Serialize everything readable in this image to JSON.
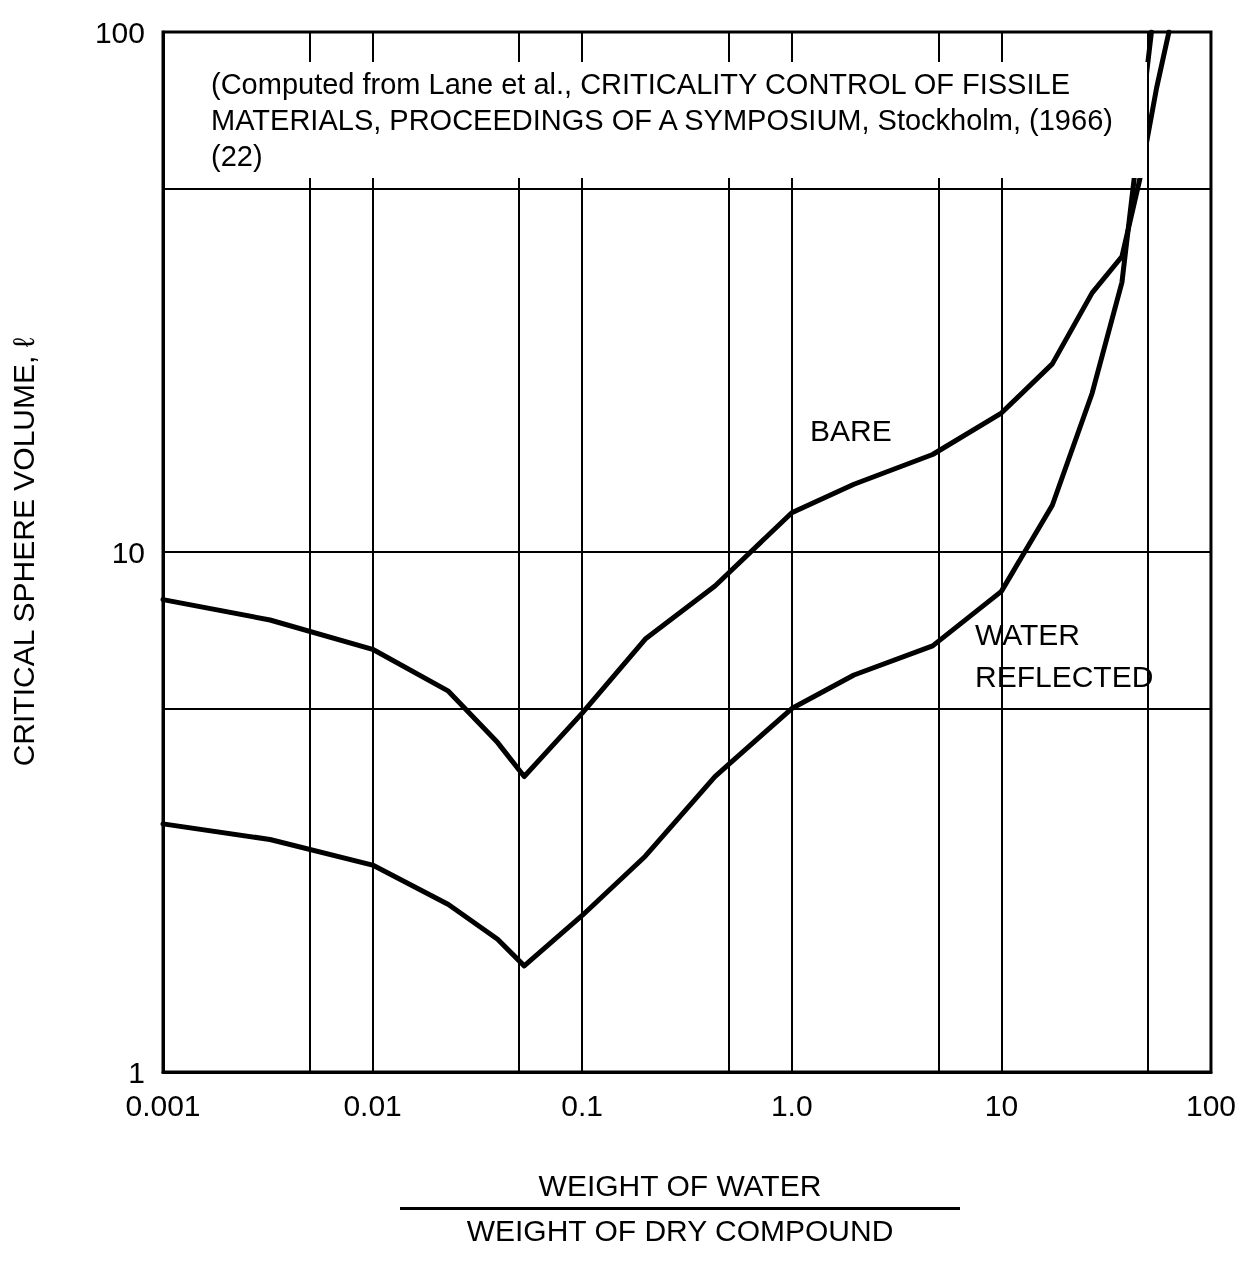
{
  "chart_data": {
    "type": "line",
    "xlabel": "WEIGHT OF WATER\nWEIGHT OF DRY COMPOUND",
    "ylabel": "CRITICAL SPHERE VOLUME, ℓ",
    "log": "xy",
    "xlim": [
      0.001,
      100
    ],
    "ylim": [
      1,
      100
    ],
    "xticks": [
      {
        "value": 0.001,
        "label": "0.001"
      },
      {
        "value": 0.005,
        "label": null
      },
      {
        "value": 0.01,
        "label": "0.01"
      },
      {
        "value": 0.05,
        "label": null
      },
      {
        "value": 0.1,
        "label": "0.1"
      },
      {
        "value": 0.5,
        "label": null
      },
      {
        "value": 1,
        "label": "1.0"
      },
      {
        "value": 5,
        "label": null
      },
      {
        "value": 10,
        "label": "10"
      },
      {
        "value": 50,
        "label": null
      },
      {
        "value": 100,
        "label": "100"
      }
    ],
    "yticks": [
      1,
      {
        "value": 5,
        "label": null
      },
      10,
      {
        "value": 50,
        "label": null
      },
      100
    ],
    "grid": true,
    "marker": "none",
    "line_style": "solid",
    "series": [
      {
        "color": "#000000",
        "x": [
          0.001,
          0.00324,
          0.01,
          0.023,
          0.0395,
          0.0529,
          0.1,
          0.2,
          0.43,
          1.0,
          1.98,
          4.7,
          10,
          17.5,
          27.1,
          37.6,
          45.7,
          55,
          63
        ],
        "values": [
          8.1,
          7.4,
          6.5,
          5.4,
          4.3,
          3.7,
          4.9,
          6.8,
          8.6,
          11.9,
          13.5,
          15.4,
          18.5,
          23,
          31.5,
          37,
          52,
          78,
          100
        ]
      },
      {
        "color": "#000000",
        "x": [
          0.001,
          0.00324,
          0.01,
          0.023,
          0.0395,
          0.0529,
          0.1,
          0.2,
          0.43,
          1.0,
          1.98,
          4.7,
          10,
          17.5,
          27.1,
          37.6,
          52
        ],
        "values": [
          3.0,
          2.8,
          2.5,
          2.1,
          1.8,
          1.6,
          2.0,
          2.6,
          3.7,
          5.0,
          5.8,
          6.6,
          8.4,
          12.3,
          20.2,
          33,
          100
        ]
      }
    ],
    "annotations": [
      "(Computed from Lane et al., CRITICALITY CONTROL OF FISSILE MATERIALS, PROCEEDINGS OF A SYMPOSIUM, Stockholm, (1966) (22)",
      "BARE",
      "WATER REFLECTED"
    ]
  }
}
